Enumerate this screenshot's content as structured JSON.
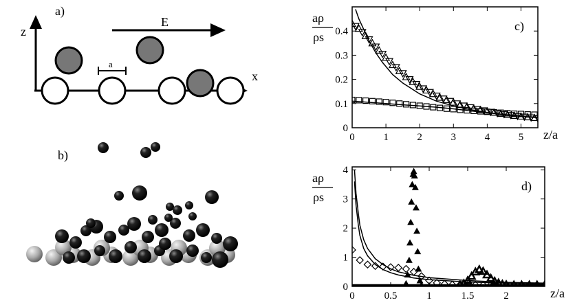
{
  "panel_a": {
    "label": "a)",
    "axis_z": "z",
    "axis_x": "x",
    "field_label": "E",
    "spacing_label": "a"
  },
  "panel_b": {
    "label": "b)"
  },
  "chart_data": [
    {
      "panel": "c)",
      "type": "scatter",
      "ylabel_num": "aρ",
      "ylabel_den": "ρs",
      "xlabel": "z/a",
      "xlim": [
        0,
        5.5
      ],
      "ylim": [
        0,
        0.5
      ],
      "xticks": [
        "0",
        "1",
        "2",
        "3",
        "4",
        "5"
      ],
      "yticks": [
        "0",
        "0.1",
        "0.2",
        "0.3",
        "0.4"
      ],
      "series": [
        {
          "marker": "triangle-up",
          "x": [
            0,
            0.2,
            0.4,
            0.6,
            0.8,
            1.0,
            1.2,
            1.4,
            1.6,
            1.8,
            2.0,
            2.2,
            2.4,
            2.6,
            2.8,
            3.0,
            3.2,
            3.4,
            3.6,
            3.8,
            4.0,
            4.2,
            4.4,
            4.6,
            4.8,
            5.0,
            5.2,
            5.4
          ],
          "y": [
            0.43,
            0.41,
            0.38,
            0.35,
            0.32,
            0.29,
            0.26,
            0.235,
            0.21,
            0.19,
            0.17,
            0.155,
            0.14,
            0.125,
            0.115,
            0.105,
            0.095,
            0.088,
            0.08,
            0.074,
            0.068,
            0.063,
            0.058,
            0.054,
            0.05,
            0.047,
            0.044,
            0.041
          ]
        },
        {
          "marker": "triangle-down",
          "x": [
            0.1,
            0.3,
            0.5,
            0.7,
            0.9,
            1.1,
            1.3,
            1.5,
            1.7,
            1.9,
            2.1,
            2.3,
            2.5,
            2.7,
            2.9,
            3.1,
            3.3,
            3.5,
            3.7,
            3.9,
            4.1,
            4.3,
            4.5,
            4.7,
            4.9,
            5.1,
            5.3,
            5.5
          ],
          "y": [
            0.42,
            0.395,
            0.365,
            0.335,
            0.305,
            0.275,
            0.25,
            0.225,
            0.2,
            0.18,
            0.162,
            0.147,
            0.132,
            0.12,
            0.11,
            0.1,
            0.091,
            0.084,
            0.077,
            0.071,
            0.065,
            0.06,
            0.056,
            0.052,
            0.048,
            0.045,
            0.042,
            0.039
          ]
        },
        {
          "marker": "square",
          "x": [
            0,
            0.2,
            0.4,
            0.6,
            0.8,
            1.0,
            1.2,
            1.4,
            1.6,
            1.8,
            2.0,
            2.2,
            2.4,
            2.6,
            2.8,
            3.0,
            3.2,
            3.4,
            3.6,
            3.8,
            4.0,
            4.2,
            4.4,
            4.6,
            4.8,
            5.0,
            5.2,
            5.4
          ],
          "y": [
            0.115,
            0.114,
            0.112,
            0.11,
            0.108,
            0.106,
            0.103,
            0.1,
            0.097,
            0.094,
            0.091,
            0.088,
            0.085,
            0.082,
            0.079,
            0.077,
            0.074,
            0.072,
            0.07,
            0.068,
            0.066,
            0.064,
            0.062,
            0.06,
            0.058,
            0.057,
            0.055,
            0.054
          ]
        },
        {
          "marker": "curve",
          "x": [
            0.1,
            0.2,
            0.3,
            0.5,
            0.7,
            0.9,
            1.2,
            1.5,
            2.0,
            2.5,
            3.0,
            3.5,
            4.0,
            4.5,
            5.0,
            5.5
          ],
          "y": [
            0.49,
            0.45,
            0.42,
            0.36,
            0.31,
            0.27,
            0.22,
            0.185,
            0.14,
            0.11,
            0.09,
            0.075,
            0.063,
            0.054,
            0.047,
            0.042
          ]
        },
        {
          "marker": "curve",
          "x": [
            0,
            0.5,
            1.0,
            1.5,
            2.0,
            2.5,
            3.0,
            3.5,
            4.0,
            4.5,
            5.0,
            5.5
          ],
          "y": [
            0.11,
            0.105,
            0.1,
            0.095,
            0.09,
            0.085,
            0.078,
            0.07,
            0.062,
            0.055,
            0.048,
            0.042
          ]
        }
      ]
    },
    {
      "panel": "d)",
      "type": "scatter",
      "ylabel_num": "aρ",
      "ylabel_den": "ρs",
      "xlabel": "z/a",
      "xlim": [
        0,
        2.5
      ],
      "ylim": [
        0,
        4.1
      ],
      "xticks": [
        "0",
        "0.5",
        "1",
        "1.5",
        "2"
      ],
      "yticks": [
        "0",
        "1",
        "2",
        "3",
        "4"
      ],
      "series": [
        {
          "marker": "triangle-filled",
          "x": [
            0.7,
            0.72,
            0.74,
            0.75,
            0.76,
            0.77,
            0.78,
            0.79,
            0.8,
            0.81,
            0.82,
            0.83,
            0.84,
            0.85,
            0.86,
            0.88,
            0.9
          ],
          "y": [
            0.1,
            0.4,
            0.9,
            1.5,
            2.2,
            2.9,
            3.5,
            3.85,
            3.95,
            3.8,
            3.4,
            2.7,
            1.9,
            1.2,
            0.6,
            0.2,
            0.05
          ]
        },
        {
          "marker": "diamond",
          "x": [
            0,
            0.1,
            0.2,
            0.3,
            0.4,
            0.5,
            0.6,
            0.7,
            0.8,
            0.9,
            1.0,
            1.1,
            1.2,
            1.3,
            1.4,
            1.5,
            1.6,
            1.7,
            1.8,
            1.9,
            2.0,
            2.1,
            2.2,
            2.3,
            2.4
          ],
          "y": [
            1.25,
            0.9,
            0.75,
            0.7,
            0.68,
            0.66,
            0.64,
            0.6,
            0.5,
            0.35,
            0.2,
            0.12,
            0.08,
            0.06,
            0.05,
            0.05,
            0.05,
            0.05,
            0.05,
            0.05,
            0.05,
            0.05,
            0.05,
            0.05,
            0.05
          ]
        },
        {
          "marker": "triangle-bold",
          "x": [
            1.4,
            1.45,
            1.5,
            1.55,
            1.6,
            1.65,
            1.7,
            1.75,
            1.8,
            1.85,
            1.9,
            1.95,
            2.0,
            2.1,
            2.2,
            2.3,
            2.4,
            2.5
          ],
          "y": [
            0.05,
            0.1,
            0.2,
            0.35,
            0.5,
            0.58,
            0.52,
            0.4,
            0.28,
            0.18,
            0.12,
            0.08,
            0.06,
            0.05,
            0.05,
            0.05,
            0.05,
            0.05
          ]
        },
        {
          "marker": "curve",
          "x": [
            0.03,
            0.05,
            0.08,
            0.1,
            0.15,
            0.2,
            0.3,
            0.4,
            0.5,
            0.6,
            0.8,
            1.0,
            1.5,
            2.0,
            2.5
          ],
          "y": [
            4.0,
            3.2,
            2.5,
            2.1,
            1.6,
            1.3,
            0.95,
            0.75,
            0.6,
            0.5,
            0.38,
            0.3,
            0.2,
            0.14,
            0.11
          ]
        },
        {
          "marker": "curve",
          "x": [
            0.03,
            0.05,
            0.08,
            0.1,
            0.15,
            0.2,
            0.3,
            0.4,
            0.5,
            0.6,
            0.8,
            1.0,
            1.5,
            2.0,
            2.5
          ],
          "y": [
            3.6,
            2.8,
            2.1,
            1.75,
            1.3,
            1.05,
            0.75,
            0.58,
            0.47,
            0.39,
            0.29,
            0.23,
            0.15,
            0.11,
            0.08
          ]
        },
        {
          "marker": "baseline",
          "x": [
            0,
            2.5
          ],
          "y": [
            0.04,
            0.04
          ]
        }
      ]
    }
  ]
}
